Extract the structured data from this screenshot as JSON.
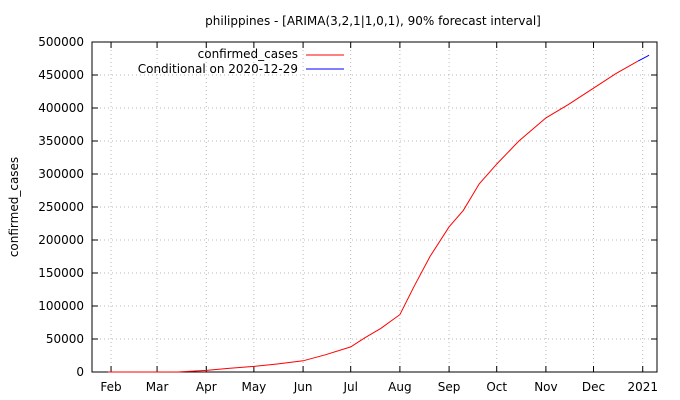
{
  "chart_data": {
    "type": "line",
    "title": "philippines -  [ARIMA(3,2,1|1,0,1), 90% forecast interval]",
    "xlabel": "",
    "ylabel": "confirmed_cases",
    "x_ticks": [
      "Feb",
      "Mar",
      "Apr",
      "May",
      "Jun",
      "Jul",
      "Aug",
      "Sep",
      "Oct",
      "Nov",
      "Dec",
      "2021"
    ],
    "y_ticks": [
      "0",
      "50000",
      "100000",
      "150000",
      "200000",
      "250000",
      "300000",
      "350000",
      "400000",
      "450000",
      "500000"
    ],
    "xlim": [
      "2020-01-20",
      "2021-01-10"
    ],
    "ylim": [
      0,
      500000
    ],
    "grid": true,
    "legend_position": "top-left",
    "colors": {
      "confirmed_cases": "#ff0000",
      "forecast": "#0000ff"
    },
    "series": [
      {
        "name": "confirmed_cases",
        "x": [
          "2020-01-30",
          "2020-03-15",
          "2020-04-01",
          "2020-04-15",
          "2020-05-01",
          "2020-05-15",
          "2020-06-01",
          "2020-06-15",
          "2020-07-01",
          "2020-07-10",
          "2020-07-20",
          "2020-08-01",
          "2020-08-10",
          "2020-08-20",
          "2020-09-01",
          "2020-09-10",
          "2020-09-20",
          "2020-10-01",
          "2020-10-15",
          "2020-11-01",
          "2020-11-15",
          "2020-12-01",
          "2020-12-15",
          "2020-12-29"
        ],
        "values": [
          1,
          150,
          2500,
          5500,
          8500,
          12000,
          17000,
          26000,
          38000,
          52000,
          66000,
          87000,
          130000,
          175000,
          220000,
          245000,
          285000,
          315000,
          350000,
          385000,
          405000,
          430000,
          452000,
          471000
        ]
      },
      {
        "name": "Conditional on 2020-12-29",
        "x": [
          "2020-12-29",
          "2021-01-02",
          "2021-01-05"
        ],
        "values": [
          471000,
          476000,
          480000
        ]
      }
    ]
  }
}
